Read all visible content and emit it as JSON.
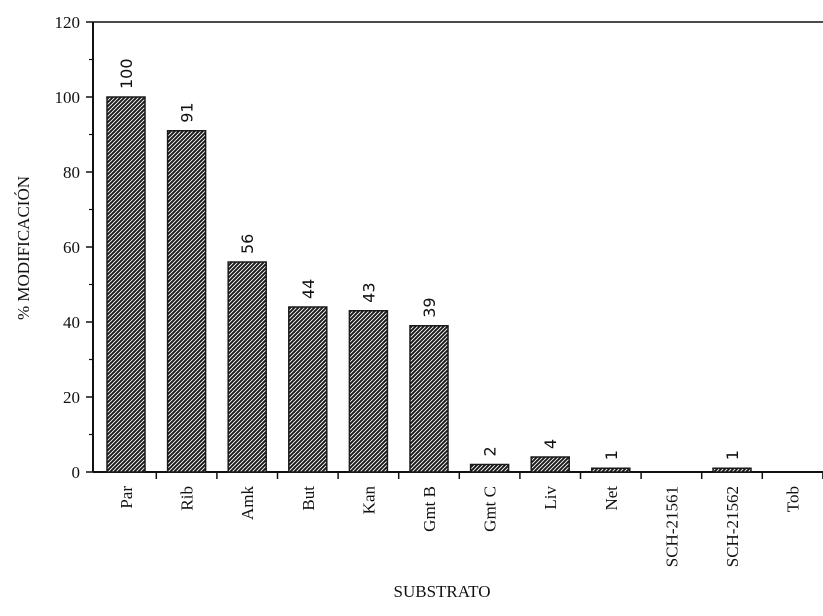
{
  "chart_data": {
    "type": "bar",
    "title": "",
    "xlabel": "SUBSTRATO",
    "ylabel": "% MODIFICACIÓN",
    "ylim": [
      0,
      120
    ],
    "yticks": [
      0,
      20,
      40,
      60,
      80,
      100,
      120
    ],
    "grid": false,
    "categories": [
      "Par",
      "Rib",
      "Amk",
      "But",
      "Kan",
      "Gmt B",
      "Gmt C",
      "Liv",
      "Net",
      "SCH-21561",
      "SCH-21562",
      "Tob"
    ],
    "values": [
      100,
      91,
      56,
      44,
      43,
      39,
      2,
      4,
      1,
      0,
      1,
      0
    ],
    "value_labels": [
      "100",
      "91",
      "56",
      "44",
      "43",
      "39",
      "2",
      "4",
      "1",
      "",
      "1",
      ""
    ],
    "bar_pattern": "diagonal-hatch",
    "colors": {
      "bar_fill": "#1a1a1a",
      "hatch": "#ffffff",
      "axis": "#111111"
    }
  }
}
